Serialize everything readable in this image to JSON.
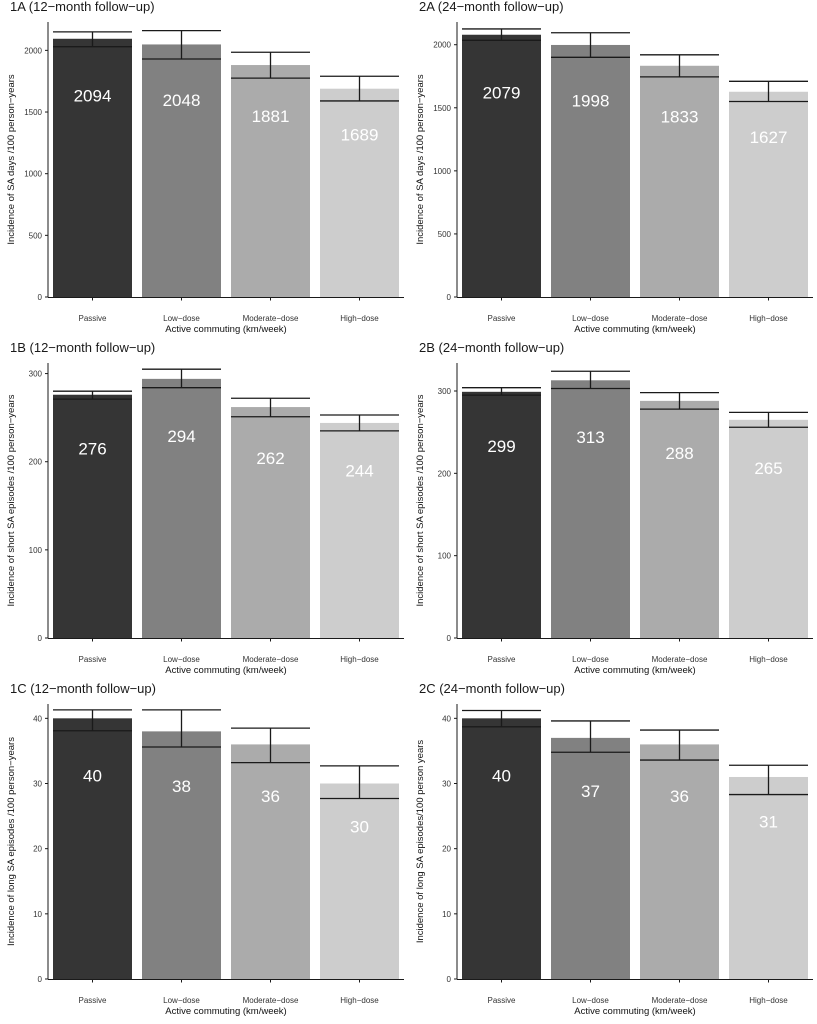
{
  "chart_data": [
    {
      "id": "1A",
      "type": "bar",
      "title": "1A (12−month follow−up)",
      "xlabel": "Active commuting (km/week)",
      "ylabel": "Incidence of SA days /100 person−years",
      "categories": [
        "Passive",
        "Low−dose",
        "Moderate−dose",
        "High−dose"
      ],
      "values": [
        2094,
        2048,
        1881,
        1689
      ],
      "value_labels": [
        "2094",
        "2048",
        "1881",
        "1689"
      ],
      "ci_low": [
        2030,
        1930,
        1775,
        1590
      ],
      "ci_high": [
        2150,
        2160,
        1985,
        1790
      ],
      "ylim": [
        0,
        2230
      ],
      "yticks": [
        0,
        500,
        1000,
        1500,
        2000
      ],
      "ytick_labels": [
        "0",
        "500",
        "1000",
        "1500",
        "2000"
      ],
      "grid": false
    },
    {
      "id": "2A",
      "type": "bar",
      "title": "2A (24−month follow−up)",
      "xlabel": "Active commuting (km/week)",
      "ylabel": "Incidence of SA days /100 person−years",
      "categories": [
        "Passive",
        "Low−dose",
        "Moderate−dose",
        "High−dose"
      ],
      "values": [
        2079,
        1998,
        1833,
        1627
      ],
      "value_labels": [
        "2079",
        "1998",
        "1833",
        "1627"
      ],
      "ci_low": [
        2035,
        1900,
        1745,
        1550
      ],
      "ci_high": [
        2125,
        2095,
        1920,
        1710
      ],
      "ylim": [
        0,
        2180
      ],
      "yticks": [
        0,
        500,
        1000,
        1500,
        2000
      ],
      "ytick_labels": [
        "0",
        "500",
        "1000",
        "1500",
        "2000"
      ],
      "grid": false
    },
    {
      "id": "1B",
      "type": "bar",
      "title": "1B (12−month follow−up)",
      "xlabel": "Active commuting (km/week)",
      "ylabel": "Incidence of short SA episodes /100 person−years",
      "categories": [
        "Passive",
        "Low−dose",
        "Moderate−dose",
        "High−dose"
      ],
      "values": [
        276,
        294,
        262,
        244
      ],
      "value_labels": [
        "276",
        "294",
        "262",
        "244"
      ],
      "ci_low": [
        271,
        284,
        251,
        235
      ],
      "ci_high": [
        280,
        305,
        272,
        253
      ],
      "ylim": [
        0,
        312
      ],
      "yticks": [
        0,
        100,
        200,
        300
      ],
      "ytick_labels": [
        "0",
        "100",
        "200",
        "300"
      ],
      "grid": false
    },
    {
      "id": "2B",
      "type": "bar",
      "title": "2B (24−month follow−up)",
      "xlabel": "Active commuting (km/week)",
      "ylabel": "Incidence of short SA episodes /100 person−years",
      "categories": [
        "Passive",
        "Low−dose",
        "Moderate−dose",
        "High−dose"
      ],
      "values": [
        299,
        313,
        288,
        265
      ],
      "value_labels": [
        "299",
        "313",
        "288",
        "265"
      ],
      "ci_low": [
        295,
        303,
        278,
        256
      ],
      "ci_high": [
        304,
        324,
        298,
        274
      ],
      "ylim": [
        0,
        334
      ],
      "yticks": [
        0,
        100,
        200,
        300
      ],
      "ytick_labels": [
        "0",
        "100",
        "200",
        "300"
      ],
      "grid": false
    },
    {
      "id": "1C",
      "type": "bar",
      "title": "1C (12−month follow−up)",
      "xlabel": "Active commuting (km/week)",
      "ylabel": "Incidence of long SA episodes /100 person−years",
      "categories": [
        "Passive",
        "Low−dose",
        "Moderate−dose",
        "High−dose"
      ],
      "values": [
        40,
        38,
        36,
        30
      ],
      "value_labels": [
        "40",
        "38",
        "36",
        "30"
      ],
      "ci_low": [
        38.1,
        35.6,
        33.2,
        27.7
      ],
      "ci_high": [
        41.3,
        41.3,
        38.5,
        32.7
      ],
      "ylim": [
        0,
        42.2
      ],
      "yticks": [
        0,
        10,
        20,
        30,
        40
      ],
      "ytick_labels": [
        "0",
        "10",
        "20",
        "30",
        "40"
      ],
      "grid": false
    },
    {
      "id": "2C",
      "type": "bar",
      "title": "2C (24−month follow−up)",
      "xlabel": "Active commuting (km/week)",
      "ylabel": "Incidence of long SA episodes/100 person years",
      "categories": [
        "Passive",
        "Low−dose",
        "Moderate−dose",
        "High−dose"
      ],
      "values": [
        40,
        37,
        36,
        31
      ],
      "value_labels": [
        "40",
        "37",
        "36",
        "31"
      ],
      "ci_low": [
        38.7,
        34.8,
        33.6,
        28.3
      ],
      "ci_high": [
        41.2,
        39.6,
        38.2,
        32.8
      ],
      "ylim": [
        0,
        42.2
      ],
      "yticks": [
        0,
        10,
        20,
        30,
        40
      ],
      "ytick_labels": [
        "0",
        "10",
        "20",
        "30",
        "40"
      ],
      "grid": false
    }
  ],
  "colors": {
    "bars": [
      "#353535",
      "#818181",
      "#ababab",
      "#cdcdcd"
    ],
    "axis": "#1a1a1a",
    "errorbar": "#1a1a1a",
    "bar_label": "#ffffff"
  }
}
